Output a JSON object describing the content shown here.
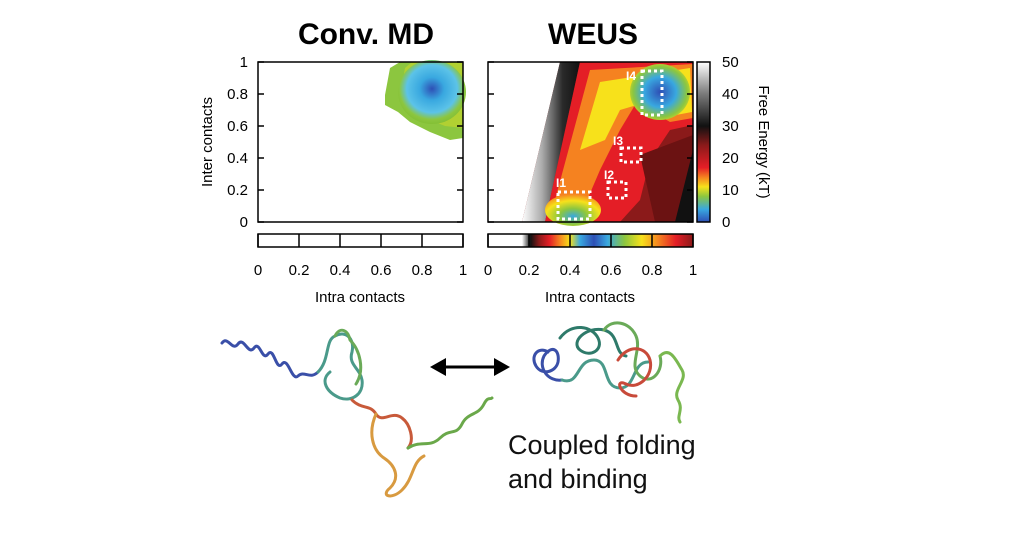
{
  "figure": {
    "caption_line1": "Coupled folding",
    "caption_line2": "and binding"
  },
  "chart_data": [
    {
      "type": "heatmap",
      "title": "Conv. MD",
      "xlabel": "Intra contacts",
      "ylabel": "Inter contacts",
      "xlim": [
        0,
        1
      ],
      "ylim": [
        0,
        1
      ],
      "x_ticks": [
        "0",
        "0.2",
        "0.4",
        "0.6",
        "0.8",
        "1"
      ],
      "y_ticks": [
        "0",
        "0.2",
        "0.4",
        "0.6",
        "0.8",
        "1"
      ],
      "sampled_region": "x 0.6-1.0, y 0.55-1.0 only",
      "minimum": {
        "x": 0.92,
        "y": 0.85,
        "value": 0
      },
      "grid": false
    },
    {
      "type": "heatmap",
      "title": "WEUS",
      "xlabel": "Intra contacts",
      "ylabel": "",
      "xlim": [
        0,
        1
      ],
      "ylim": [
        0,
        1
      ],
      "x_ticks": [
        "0",
        "0.2",
        "0.4",
        "0.6",
        "0.8",
        "1"
      ],
      "y_ticks": [
        "0",
        "0.2",
        "0.4",
        "0.6",
        "0.8",
        "1"
      ],
      "grid": false,
      "annotations": [
        {
          "label": "I1",
          "x": [
            0.35,
            0.5
          ],
          "y": [
            0.0,
            0.18
          ]
        },
        {
          "label": "I2",
          "x": [
            0.6,
            0.68
          ],
          "y": [
            0.13,
            0.23
          ]
        },
        {
          "label": "I3",
          "x": [
            0.65,
            0.75
          ],
          "y": [
            0.37,
            0.45
          ]
        },
        {
          "label": "I4",
          "x": [
            0.75,
            0.86
          ],
          "y": [
            0.65,
            0.92
          ]
        }
      ],
      "colorbar": {
        "label": "Free Energy (kT)",
        "range": [
          0,
          50
        ],
        "ticks": [
          "0",
          "10",
          "20",
          "30",
          "40",
          "50"
        ],
        "colors": [
          "#2e4fb5",
          "#39a8e0",
          "#8cc63f",
          "#f7e11b",
          "#f58220",
          "#e41e26",
          "#8b1a1a",
          "#111111",
          "#7a7a7a",
          "#ffffff"
        ]
      }
    }
  ]
}
